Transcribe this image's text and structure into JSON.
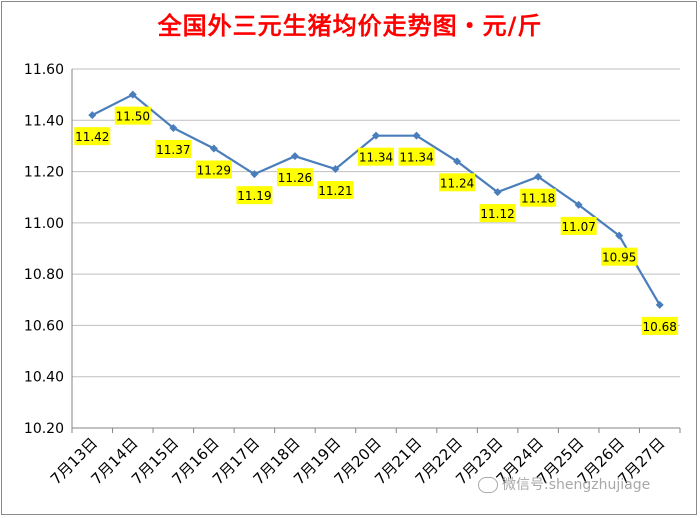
{
  "title": "全国外三元生猪均价走势图・元/斤",
  "watermark": "微信号:shengzhujiage",
  "chart_data": {
    "type": "line",
    "title": "全国外三元生猪均价走势图・元/斤",
    "xlabel": "",
    "ylabel": "",
    "categories": [
      "7月13日",
      "7月14日",
      "7月15日",
      "7月16日",
      "7月17日",
      "7月18日",
      "7月19日",
      "7月20日",
      "7月21日",
      "7月22日",
      "7月23日",
      "7月24日",
      "7月25日",
      "7月26日",
      "7月27日"
    ],
    "series": [
      {
        "values": [
          11.42,
          11.5,
          11.37,
          11.29,
          11.19,
          11.26,
          11.21,
          11.34,
          11.34,
          11.24,
          11.12,
          11.18,
          11.07,
          10.95,
          10.68
        ]
      }
    ],
    "data_labels": [
      "11.42",
      "11.50",
      "11.37",
      "11.29",
      "11.19",
      "11.26",
      "11.21",
      "11.34",
      "11.34",
      "11.24",
      "11.12",
      "11.18",
      "11.07",
      "10.95",
      "10.68"
    ],
    "ylim": [
      10.2,
      11.6
    ],
    "yticks": [
      "10.20",
      "10.40",
      "10.60",
      "10.80",
      "11.00",
      "11.20",
      "11.40",
      "11.60"
    ],
    "grid": true,
    "legend": "none",
    "colors": {
      "line": "#4a7ebb",
      "label_bg": "#ffff00",
      "title": "#ff0000",
      "grid": "#bfbfbf"
    }
  }
}
